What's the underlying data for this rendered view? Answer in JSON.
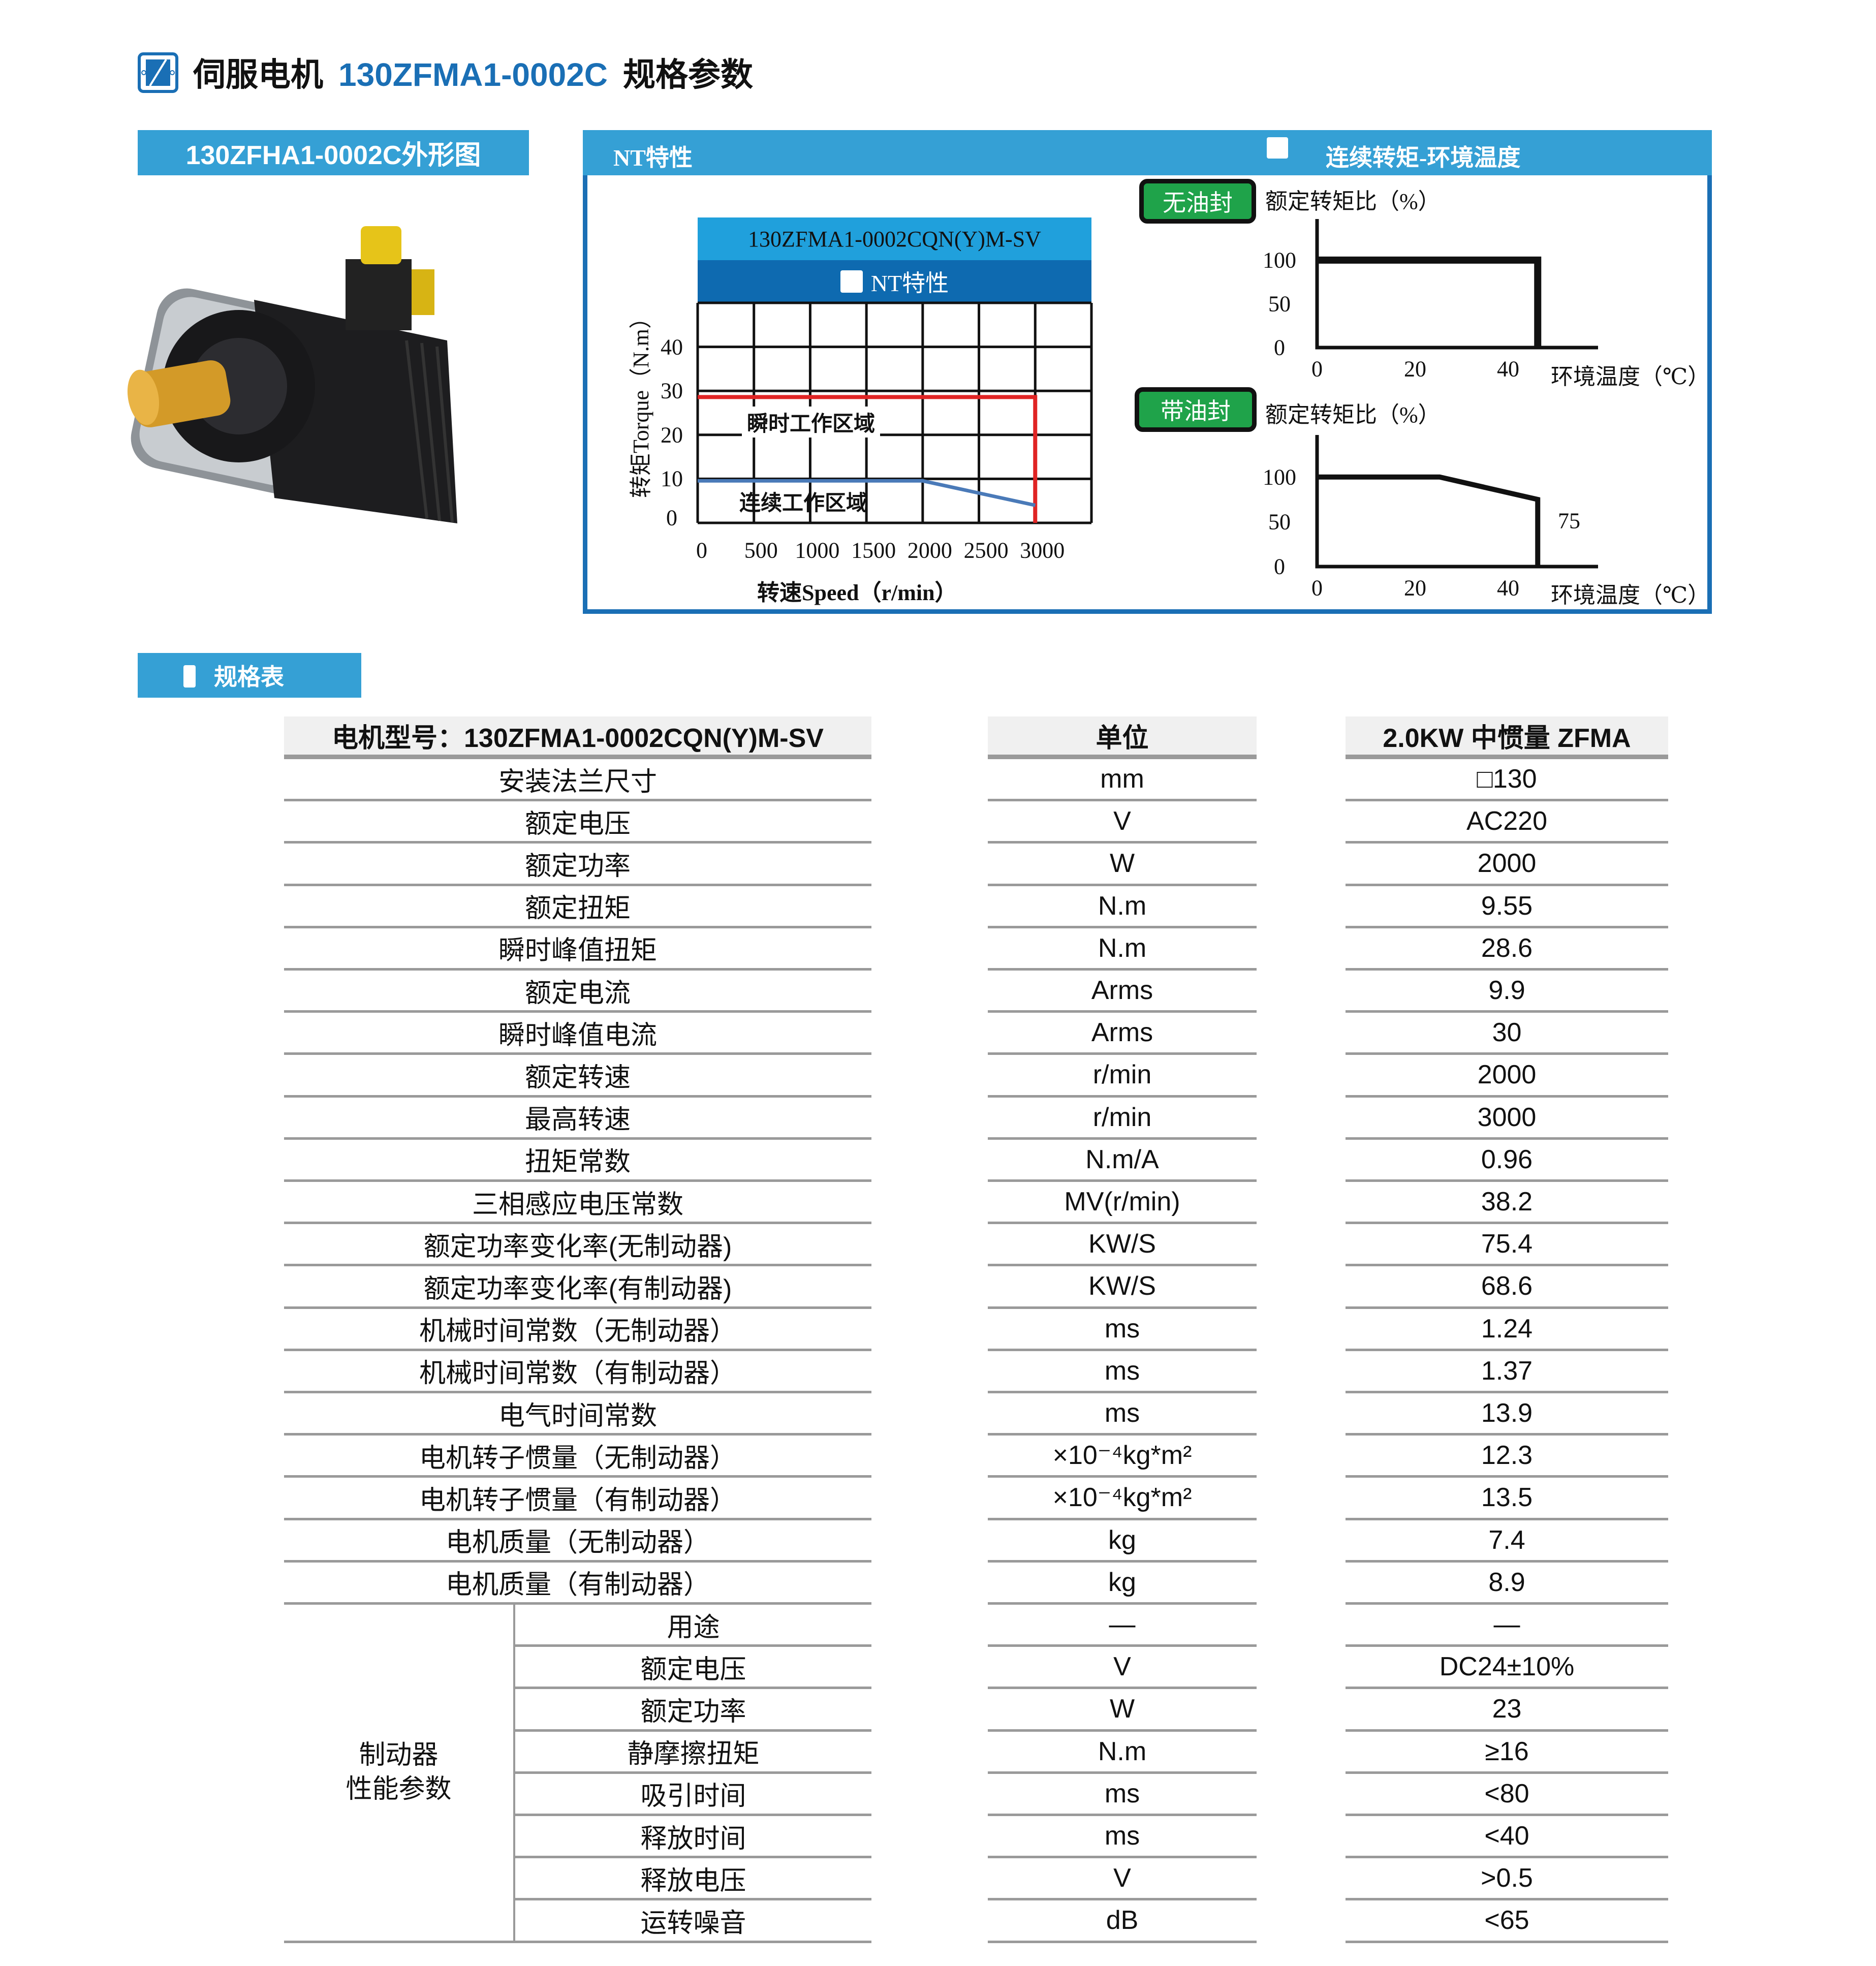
{
  "header": {
    "prefix": "伺服电机",
    "model": "130ZFMA1-0002C",
    "suffix": "规格参数",
    "logo_icon": "servo-logo-icon"
  },
  "outline": {
    "title": "130ZFHA1-0002C外形图"
  },
  "nt_panel": {
    "title": "NT特性",
    "right_title": "连续转矩-环境温度",
    "chart_model": "130ZFMA1-0002CQN(Y)M-SV",
    "chart_subtitle": "NT特性",
    "region_peak": "瞬时工作区域",
    "region_continuous": "连续工作区域",
    "no_seal_label": "无油封",
    "seal_label": "带油封"
  },
  "colors": {
    "brand_blue": "#1a6fb5",
    "header_blue": "#35a0d5",
    "peak": "#e02424",
    "continuous": "#4a7ab8",
    "badge_green": "#1fa34a"
  },
  "chart_data": [
    {
      "type": "line",
      "title": "NT特性",
      "xlabel": "转速Speed（r/min）",
      "ylabel": "转矩Torque（N.m）",
      "xlim": [
        0,
        3500
      ],
      "ylim": [
        0,
        50
      ],
      "grid": true,
      "xticks": [
        "0",
        "500",
        "1000",
        "1500",
        "2000",
        "2500",
        "3000"
      ],
      "yticks": [
        "0",
        "10",
        "20",
        "30",
        "40"
      ],
      "series": [
        {
          "name": "瞬时工作区域",
          "x": [
            0,
            3000,
            3000
          ],
          "y": [
            28.6,
            28.6,
            0
          ]
        },
        {
          "name": "连续工作区域",
          "x": [
            0,
            2000,
            3000
          ],
          "y": [
            9.55,
            9.55,
            4
          ]
        }
      ]
    },
    {
      "type": "line",
      "title": "无油封",
      "ylabel": "额定转矩比（%）",
      "xlabel": "环境温度（℃）",
      "xticks": [
        "0",
        "20",
        "40"
      ],
      "yticks": [
        "0",
        "50",
        "100"
      ],
      "series": [
        {
          "x": [
            0,
            45,
            45
          ],
          "y": [
            100,
            100,
            0
          ]
        }
      ]
    },
    {
      "type": "line",
      "title": "带油封",
      "ylabel": "额定转矩比（%）",
      "xlabel": "环境温度（℃）",
      "xticks": [
        "0",
        "20",
        "40"
      ],
      "yticks": [
        "0",
        "50",
        "100"
      ],
      "annotation": "75",
      "series": [
        {
          "x": [
            0,
            25,
            45,
            45
          ],
          "y": [
            100,
            100,
            75,
            0
          ]
        }
      ]
    }
  ],
  "specs": {
    "section_title": "规格表",
    "columns": [
      "电机型号：130ZFMA1-0002CQN(Y)M-SV",
      "单位",
      "2.0KW 中惯量 ZFMA"
    ],
    "rows": [
      {
        "label": "安装法兰尺寸",
        "unit": "mm",
        "value": "□130"
      },
      {
        "label": "额定电压",
        "unit": "V",
        "value": "AC220"
      },
      {
        "label": "额定功率",
        "unit": "W",
        "value": "2000"
      },
      {
        "label": "额定扭矩",
        "unit": "N.m",
        "value": "9.55"
      },
      {
        "label": "瞬时峰值扭矩",
        "unit": "N.m",
        "value": "28.6"
      },
      {
        "label": "额定电流",
        "unit": "Arms",
        "value": "9.9"
      },
      {
        "label": "瞬时峰值电流",
        "unit": "Arms",
        "value": "30"
      },
      {
        "label": "额定转速",
        "unit": "r/min",
        "value": "2000"
      },
      {
        "label": "最高转速",
        "unit": "r/min",
        "value": "3000"
      },
      {
        "label": "扭矩常数",
        "unit": "N.m/A",
        "value": "0.96"
      },
      {
        "label": "三相感应电压常数",
        "unit": "MV(r/min)",
        "value": "38.2"
      },
      {
        "label": "额定功率变化率(无制动器)",
        "unit": "KW/S",
        "value": "75.4"
      },
      {
        "label": "额定功率变化率(有制动器)",
        "unit": "KW/S",
        "value": "68.6"
      },
      {
        "label": "机械时间常数（无制动器）",
        "unit": "ms",
        "value": "1.24"
      },
      {
        "label": "机械时间常数（有制动器）",
        "unit": "ms",
        "value": "1.37"
      },
      {
        "label": "电气时间常数",
        "unit": "ms",
        "value": "13.9"
      },
      {
        "label": "电机转子惯量（无制动器）",
        "unit": "×10⁻⁴kg*m²",
        "value": "12.3"
      },
      {
        "label": "电机转子惯量（有制动器）",
        "unit": "×10⁻⁴kg*m²",
        "value": "13.5"
      },
      {
        "label": "电机质量（无制动器）",
        "unit": "kg",
        "value": "7.4"
      },
      {
        "label": "电机质量（有制动器）",
        "unit": "kg",
        "value": "8.9"
      }
    ],
    "brake_group": "制动器\n性能参数",
    "brake_rows": [
      {
        "label": "用途",
        "unit": "—",
        "value": "—"
      },
      {
        "label": "额定电压",
        "unit": "V",
        "value": "DC24±10%"
      },
      {
        "label": "额定功率",
        "unit": "W",
        "value": "23"
      },
      {
        "label": "静摩擦扭矩",
        "unit": "N.m",
        "value": "≥16"
      },
      {
        "label": "吸引时间",
        "unit": "ms",
        "value": "<80"
      },
      {
        "label": "释放时间",
        "unit": "ms",
        "value": "<40"
      },
      {
        "label": "释放电压",
        "unit": "V",
        "value": ">0.5"
      },
      {
        "label": "运转噪音",
        "unit": "dB",
        "value": "<65"
      }
    ]
  }
}
